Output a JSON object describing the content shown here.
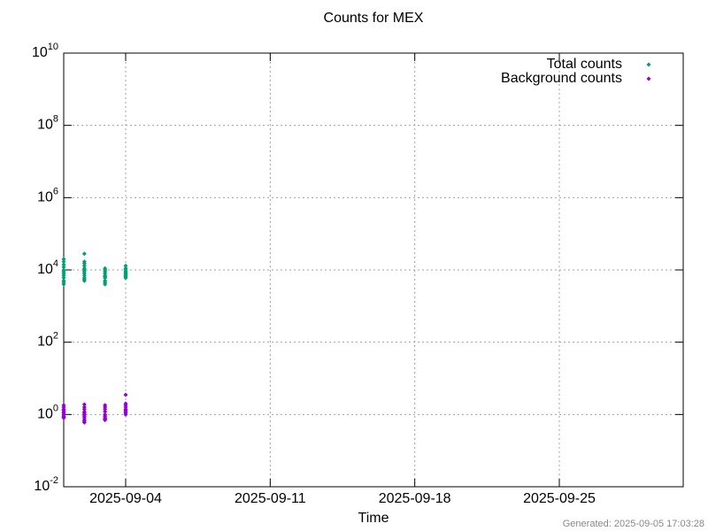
{
  "chart_data": {
    "type": "scatter",
    "title": "Counts for MEX",
    "x_label": "Time",
    "footer": "Generated: 2025-09-05 17:03:28",
    "log_y": true,
    "grid": true,
    "legend": "top-right",
    "xlim": [
      "2025-09-01",
      "2025-10-01"
    ],
    "xticks": [
      "2025-09-04",
      "2025-09-11",
      "2025-09-18",
      "2025-09-25"
    ],
    "ylim": [
      0.01,
      10000000000
    ],
    "yticks": [
      {
        "value": 0.01,
        "label": "10^-2"
      },
      {
        "value": 1,
        "label": "10^0"
      },
      {
        "value": 100,
        "label": "10^2"
      },
      {
        "value": 10000,
        "label": "10^4"
      },
      {
        "value": 1000000,
        "label": "10^6"
      },
      {
        "value": 100000000,
        "label": "10^8"
      },
      {
        "value": 10000000000,
        "label": "10^10"
      }
    ],
    "series": [
      {
        "name": "Total counts",
        "color": "#009e73",
        "x": [
          "2025-09-01",
          "2025-09-01",
          "2025-09-01",
          "2025-09-01",
          "2025-09-01",
          "2025-09-01",
          "2025-09-01",
          "2025-09-01",
          "2025-09-01",
          "2025-09-01",
          "2025-09-01",
          "2025-09-01",
          "2025-09-02",
          "2025-09-02",
          "2025-09-02",
          "2025-09-02",
          "2025-09-02",
          "2025-09-02",
          "2025-09-02",
          "2025-09-02",
          "2025-09-02",
          "2025-09-02",
          "2025-09-02",
          "2025-09-02",
          "2025-09-03",
          "2025-09-03",
          "2025-09-03",
          "2025-09-03",
          "2025-09-03",
          "2025-09-03",
          "2025-09-03",
          "2025-09-03",
          "2025-09-03",
          "2025-09-03",
          "2025-09-04",
          "2025-09-04",
          "2025-09-04",
          "2025-09-04",
          "2025-09-04",
          "2025-09-04",
          "2025-09-04",
          "2025-09-04",
          "2025-09-04",
          "2025-09-04"
        ],
        "values": [
          4000,
          5000,
          6000,
          7000,
          8000,
          9000,
          10000,
          12000,
          14000,
          17000,
          20000,
          4500,
          5000,
          6000,
          7000,
          8000,
          9000,
          11000,
          13000,
          15000,
          17000,
          28000,
          5500,
          10000,
          4000,
          5000,
          6000,
          7000,
          8000,
          9000,
          10000,
          11000,
          4500,
          6500,
          6000,
          7000,
          8000,
          9000,
          10000,
          11000,
          13000,
          6500,
          8500,
          7500
        ]
      },
      {
        "name": "Background counts",
        "color": "#9400d3",
        "x": [
          "2025-09-01",
          "2025-09-01",
          "2025-09-01",
          "2025-09-01",
          "2025-09-01",
          "2025-09-01",
          "2025-09-01",
          "2025-09-01",
          "2025-09-01",
          "2025-09-01",
          "2025-09-02",
          "2025-09-02",
          "2025-09-02",
          "2025-09-02",
          "2025-09-02",
          "2025-09-02",
          "2025-09-02",
          "2025-09-02",
          "2025-09-02",
          "2025-09-02",
          "2025-09-02",
          "2025-09-03",
          "2025-09-03",
          "2025-09-03",
          "2025-09-03",
          "2025-09-03",
          "2025-09-03",
          "2025-09-03",
          "2025-09-03",
          "2025-09-03",
          "2025-09-04",
          "2025-09-04",
          "2025-09-04",
          "2025-09-04",
          "2025-09-04",
          "2025-09-04",
          "2025-09-04",
          "2025-09-04",
          "2025-09-04"
        ],
        "values": [
          0.8,
          0.9,
          1,
          1.1,
          1.2,
          1.4,
          1.6,
          1.8,
          0.85,
          1.3,
          0.6,
          0.7,
          0.8,
          0.9,
          1,
          1.2,
          1.4,
          1.6,
          1.9,
          0.65,
          1.1,
          0.7,
          0.8,
          0.9,
          1,
          1.2,
          1.4,
          1.6,
          1.8,
          0.75,
          1,
          1.1,
          1.2,
          1.4,
          1.6,
          1.8,
          2,
          3.5,
          1.3
        ]
      }
    ]
  }
}
